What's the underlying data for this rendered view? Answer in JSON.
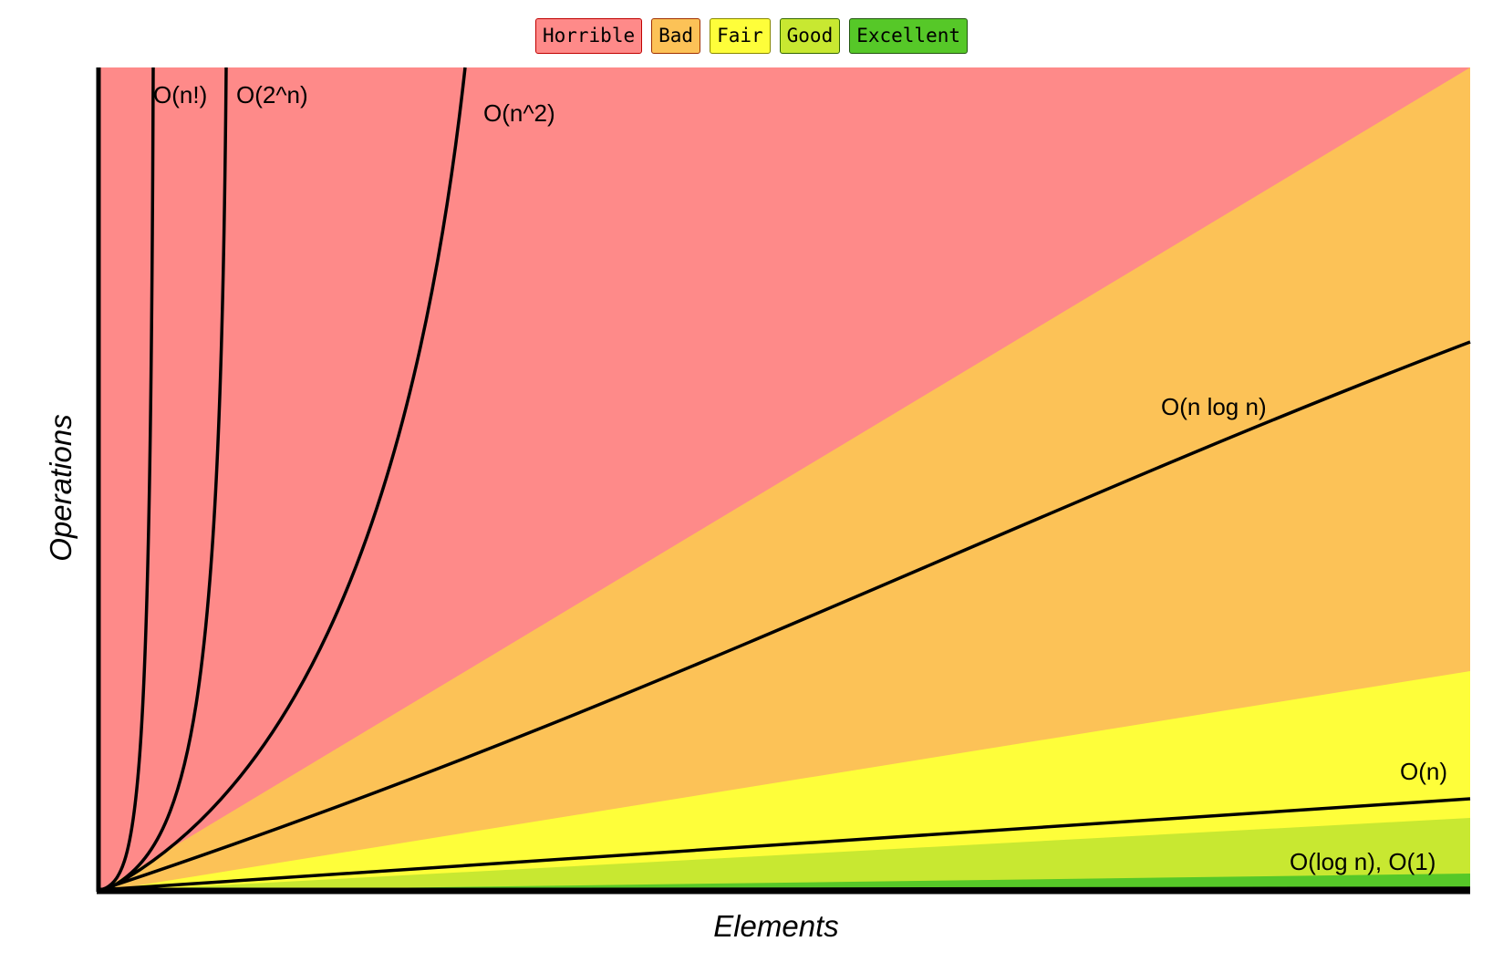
{
  "legend": [
    {
      "label": "Horrible",
      "color": "#FE8A89",
      "border": "#C00000"
    },
    {
      "label": "Bad",
      "color": "#FCC257",
      "border": "#A03000"
    },
    {
      "label": "Fair",
      "color": "#FEFE3A",
      "border": "#888800"
    },
    {
      "label": "Good",
      "color": "#C8E831",
      "border": "#336600"
    },
    {
      "label": "Excellent",
      "color": "#56C828",
      "border": "#225511"
    }
  ],
  "chart_data": {
    "type": "line",
    "xlabel": "Elements",
    "ylabel": "Operations",
    "regions": [
      {
        "name": "Horrible",
        "color": "#FE8A89"
      },
      {
        "name": "Bad",
        "color": "#FCC257"
      },
      {
        "name": "Fair",
        "color": "#FEFE3A"
      },
      {
        "name": "Good",
        "color": "#C8E831"
      },
      {
        "name": "Excellent",
        "color": "#56C828"
      }
    ],
    "series": [
      {
        "name": "O(n!)",
        "label": "O(n!)"
      },
      {
        "name": "O(2^n)",
        "label": "O(2^n)"
      },
      {
        "name": "O(n^2)",
        "label": "O(n^2)"
      },
      {
        "name": "O(n log n)",
        "label": "O(n log n)"
      },
      {
        "name": "O(n)",
        "label": "O(n)"
      },
      {
        "name": "O(log n), O(1)",
        "label": "O(log n), O(1)"
      }
    ]
  }
}
